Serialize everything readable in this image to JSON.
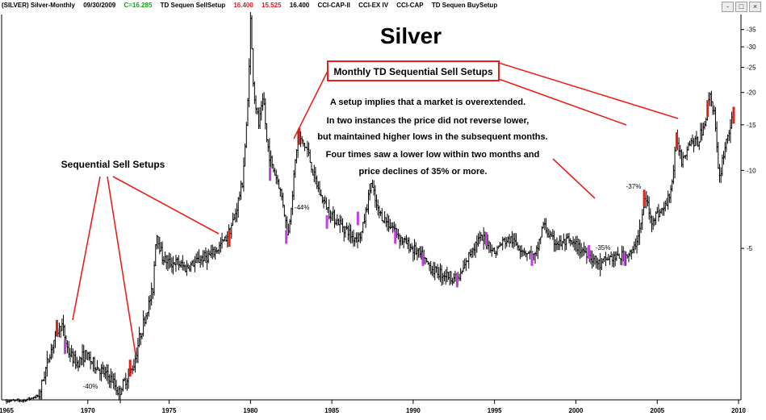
{
  "header": {
    "symbol": "(SILVER) Silver-Monthly",
    "date": "09/30/2009",
    "close": "C=16.285",
    "study1": "TD Sequen SellSetup",
    "val1": "16.400",
    "val2": "15.525",
    "val3": "16.400",
    "study2": "CCI-CAP-II",
    "study3": "CCI-EX IV",
    "study4": "CCI-CAP",
    "study5": "TD Sequen BuySetup"
  },
  "window_buttons": [
    "-",
    "□",
    "×"
  ],
  "colors": {
    "price_bar": "#000000",
    "sell_setup": "#e8201a",
    "buy_setup": "#c040e0",
    "annotation": "#e8201a",
    "background": "#ffffff"
  },
  "annotations": {
    "callout_box": "Monthly TD Sequential Sell Setups",
    "left_label": "Sequential Sell Setups",
    "note_lines": [
      "A setup implies that a market is overextended.",
      "In two instances the price did not reverse lower,",
      "but maintained higher lows in the subsequent months.",
      "Four times saw a lower low within two months and",
      "price declines of 35% or more."
    ],
    "declines": [
      "-40%",
      "-44%",
      "-35%",
      "-37%"
    ]
  },
  "chart_data": {
    "type": "ohlc",
    "title": "Silver",
    "frequency": "monthly",
    "y_scale": "log",
    "ylim": [
      1.3,
      40
    ],
    "xlim": [
      1965,
      2010
    ],
    "x_ticks": [
      "1965",
      "1970",
      "1975",
      "1980",
      "1985",
      "1990",
      "1995",
      "2000",
      "2005",
      "2010"
    ],
    "y_ticks": [
      "35",
      "30",
      "25",
      "20",
      "15",
      "10",
      "5"
    ],
    "price_path": [
      [
        1965.0,
        1.29
      ],
      [
        1966.0,
        1.29
      ],
      [
        1967.0,
        1.35
      ],
      [
        1967.5,
        1.8
      ],
      [
        1968.0,
        2.3
      ],
      [
        1968.4,
        2.55
      ],
      [
        1968.8,
        2.0
      ],
      [
        1969.3,
        1.8
      ],
      [
        1969.8,
        1.95
      ],
      [
        1970.5,
        1.75
      ],
      [
        1971.0,
        1.65
      ],
      [
        1971.5,
        1.55
      ],
      [
        1971.9,
        1.38
      ],
      [
        1972.3,
        1.55
      ],
      [
        1972.8,
        1.75
      ],
      [
        1973.2,
        2.3
      ],
      [
        1973.6,
        2.8
      ],
      [
        1974.0,
        3.5
      ],
      [
        1974.2,
        5.8
      ],
      [
        1974.6,
        4.6
      ],
      [
        1975.0,
        4.4
      ],
      [
        1975.5,
        4.4
      ],
      [
        1976.0,
        4.2
      ],
      [
        1976.6,
        4.4
      ],
      [
        1977.0,
        4.6
      ],
      [
        1977.6,
        4.7
      ],
      [
        1978.0,
        5.0
      ],
      [
        1978.5,
        5.5
      ],
      [
        1979.0,
        6.5
      ],
      [
        1979.5,
        9.0
      ],
      [
        1979.8,
        16.0
      ],
      [
        1980.0,
        38.0
      ],
      [
        1980.2,
        20.0
      ],
      [
        1980.5,
        15.0
      ],
      [
        1980.8,
        19.0
      ],
      [
        1981.0,
        13.0
      ],
      [
        1981.3,
        10.5
      ],
      [
        1981.7,
        9.0
      ],
      [
        1982.0,
        7.5
      ],
      [
        1982.3,
        5.5
      ],
      [
        1982.6,
        8.5
      ],
      [
        1982.9,
        13.5
      ],
      [
        1983.1,
        13.0
      ],
      [
        1983.5,
        12.0
      ],
      [
        1983.9,
        9.5
      ],
      [
        1984.3,
        8.0
      ],
      [
        1984.8,
        7.0
      ],
      [
        1985.3,
        6.4
      ],
      [
        1985.8,
        6.0
      ],
      [
        1986.3,
        5.5
      ],
      [
        1986.8,
        5.6
      ],
      [
        1987.2,
        7.5
      ],
      [
        1987.4,
        9.0
      ],
      [
        1987.8,
        7.0
      ],
      [
        1988.3,
        6.4
      ],
      [
        1988.8,
        6.0
      ],
      [
        1989.3,
        5.4
      ],
      [
        1989.8,
        5.1
      ],
      [
        1990.3,
        4.8
      ],
      [
        1990.8,
        4.4
      ],
      [
        1991.3,
        4.1
      ],
      [
        1991.8,
        4.0
      ],
      [
        1992.3,
        3.9
      ],
      [
        1992.8,
        3.8
      ],
      [
        1993.2,
        4.3
      ],
      [
        1993.6,
        5.0
      ],
      [
        1994.0,
        5.4
      ],
      [
        1994.5,
        5.4
      ],
      [
        1995.0,
        4.8
      ],
      [
        1995.5,
        5.3
      ],
      [
        1996.0,
        5.4
      ],
      [
        1996.5,
        5.1
      ],
      [
        1997.0,
        4.8
      ],
      [
        1997.5,
        4.6
      ],
      [
        1998.0,
        6.2
      ],
      [
        1998.5,
        5.4
      ],
      [
        1999.0,
        5.2
      ],
      [
        1999.5,
        5.3
      ],
      [
        2000.0,
        5.1
      ],
      [
        2000.5,
        4.9
      ],
      [
        2001.0,
        4.6
      ],
      [
        2001.5,
        4.3
      ],
      [
        2002.0,
        4.6
      ],
      [
        2002.5,
        4.6
      ],
      [
        2003.0,
        4.7
      ],
      [
        2003.5,
        4.8
      ],
      [
        2004.0,
        6.2
      ],
      [
        2004.3,
        8.0
      ],
      [
        2004.6,
        6.4
      ],
      [
        2005.0,
        6.8
      ],
      [
        2005.5,
        7.2
      ],
      [
        2005.9,
        8.8
      ],
      [
        2006.2,
        13.5
      ],
      [
        2006.5,
        11.0
      ],
      [
        2007.0,
        13.0
      ],
      [
        2007.5,
        12.8
      ],
      [
        2008.0,
        16.0
      ],
      [
        2008.2,
        20.0
      ],
      [
        2008.5,
        17.0
      ],
      [
        2008.8,
        9.0
      ],
      [
        2009.0,
        11.0
      ],
      [
        2009.3,
        13.5
      ],
      [
        2009.7,
        16.3
      ]
    ],
    "sell_setups": [
      {
        "x": 1968.1,
        "price": 2.45
      },
      {
        "x": 1972.6,
        "price": 1.72
      },
      {
        "x": 1978.7,
        "price": 5.45
      },
      {
        "x": 1983.0,
        "price": 13.5
      },
      {
        "x": 2004.2,
        "price": 7.8
      },
      {
        "x": 2006.2,
        "price": 13.0
      },
      {
        "x": 2008.1,
        "price": 17.3
      },
      {
        "x": 2009.7,
        "price": 16.3
      }
    ],
    "buy_setups": [
      {
        "x": 1968.6,
        "price": 2.1
      },
      {
        "x": 1981.2,
        "price": 9.8
      },
      {
        "x": 1982.2,
        "price": 5.6
      },
      {
        "x": 1984.7,
        "price": 6.4
      },
      {
        "x": 1986.6,
        "price": 6.6
      },
      {
        "x": 1988.9,
        "price": 5.6
      },
      {
        "x": 1990.6,
        "price": 4.6
      },
      {
        "x": 1992.7,
        "price": 3.8
      },
      {
        "x": 1994.5,
        "price": 5.5
      },
      {
        "x": 1997.3,
        "price": 4.6
      },
      {
        "x": 2000.8,
        "price": 4.9
      },
      {
        "x": 2003.0,
        "price": 4.6
      }
    ]
  }
}
